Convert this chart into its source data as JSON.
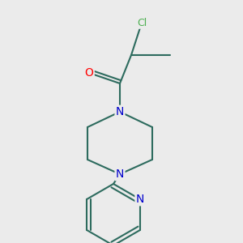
{
  "bg_color": "#ebebeb",
  "bond_color": "#2d6b5e",
  "bond_width": 1.5,
  "atom_colors": {
    "Cl": "#4caf50",
    "O": "#ff0000",
    "N": "#0000cc",
    "C": "#000000"
  }
}
